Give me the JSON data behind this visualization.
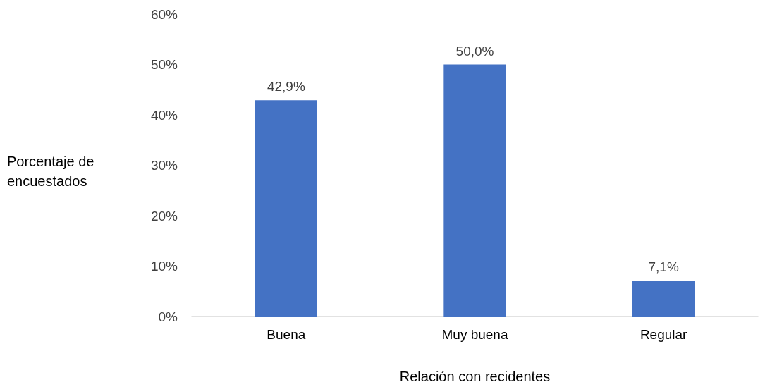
{
  "chart_data": {
    "type": "bar",
    "xlabel": "Relación con recidentes",
    "ylabel": "Porcentaje de encuestados",
    "categories": [
      "Buena",
      "Muy buena",
      "Regular"
    ],
    "values": [
      42.9,
      50.0,
      7.1
    ],
    "color": "#4472c4",
    "value_labels": [
      "42,9%",
      "50,0%",
      "7,1%"
    ],
    "ylim": [
      0,
      60
    ],
    "yticks": [
      {
        "value": 0,
        "label": "0%"
      },
      {
        "value": 10,
        "label": "10%"
      },
      {
        "value": 20,
        "label": "20%"
      },
      {
        "value": 30,
        "label": "30%"
      },
      {
        "value": 40,
        "label": "40%"
      },
      {
        "value": 50,
        "label": "50%"
      },
      {
        "value": 60,
        "label": "60%"
      }
    ],
    "grid": false
  }
}
